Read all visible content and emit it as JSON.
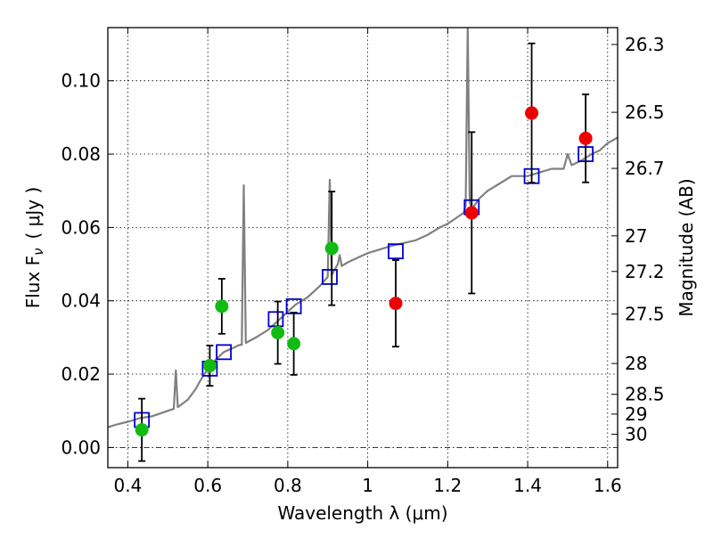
{
  "chart_data": {
    "type": "scatter",
    "xlabel": "Wavelength  λ (μm)",
    "ylabel": "Flux  F",
    "ylabel_sub": "ν",
    "ylabel_unit": "( μJy )",
    "right_ylabel": "Magnitude (AB)",
    "xlim": [
      0.35,
      1.625
    ],
    "ylim": [
      -0.0055,
      0.1145
    ],
    "x_ticks": [
      0.4,
      0.6,
      0.8,
      1.0,
      1.2,
      1.4,
      1.6
    ],
    "x_tick_labels": [
      "0.4",
      "0.6",
      "0.8",
      "1",
      "1.2",
      "1.4",
      "1.6"
    ],
    "y_ticks": [
      0.0,
      0.02,
      0.04,
      0.06,
      0.08,
      0.1
    ],
    "y_tick_labels": [
      "0.00",
      "0.02",
      "0.04",
      "0.06",
      "0.08",
      "0.10"
    ],
    "right_ticks": [
      {
        "label": "26.3",
        "flux": 0.1099
      },
      {
        "label": "26.5",
        "flux": 0.0914
      },
      {
        "label": "26.7",
        "flux": 0.0761
      },
      {
        "label": "27",
        "flux": 0.0577
      },
      {
        "label": "27.2",
        "flux": 0.048
      },
      {
        "label": "27.5",
        "flux": 0.0364
      },
      {
        "label": "28",
        "flux": 0.0229
      },
      {
        "label": "28.5",
        "flux": 0.0145
      },
      {
        "label": "29",
        "flux": 0.0091
      },
      {
        "label": "30",
        "flux": 0.0036
      }
    ],
    "grid": true,
    "zero_line": true,
    "colors": {
      "spectrum": "#808080",
      "model": "#0000cc",
      "green": "#11bb11",
      "red": "#ee0000",
      "errorbar": "#000000"
    },
    "series": [
      {
        "kind": "line",
        "points": [
          [
            0.35,
            0.0055
          ],
          [
            0.37,
            0.0062
          ],
          [
            0.4,
            0.007
          ],
          [
            0.43,
            0.008
          ],
          [
            0.46,
            0.0085
          ],
          [
            0.5,
            0.01
          ],
          [
            0.515,
            0.0105
          ],
          [
            0.52,
            0.021
          ],
          [
            0.525,
            0.011
          ],
          [
            0.55,
            0.013
          ],
          [
            0.57,
            0.016
          ],
          [
            0.58,
            0.018
          ],
          [
            0.6,
            0.0215
          ],
          [
            0.62,
            0.024
          ],
          [
            0.64,
            0.026
          ],
          [
            0.66,
            0.027
          ],
          [
            0.68,
            0.028
          ],
          [
            0.685,
            0.028
          ],
          [
            0.69,
            0.0715
          ],
          [
            0.695,
            0.0285
          ],
          [
            0.72,
            0.03
          ],
          [
            0.75,
            0.032
          ],
          [
            0.78,
            0.035
          ],
          [
            0.8,
            0.037
          ],
          [
            0.82,
            0.039
          ],
          [
            0.85,
            0.041
          ],
          [
            0.88,
            0.044
          ],
          [
            0.9,
            0.0465
          ],
          [
            0.905,
            0.073
          ],
          [
            0.91,
            0.047
          ],
          [
            0.925,
            0.05
          ],
          [
            0.93,
            0.0525
          ],
          [
            0.935,
            0.0495
          ],
          [
            0.95,
            0.0505
          ],
          [
            0.98,
            0.052
          ],
          [
            1.0,
            0.053
          ],
          [
            1.03,
            0.054
          ],
          [
            1.06,
            0.055
          ],
          [
            1.08,
            0.0555
          ],
          [
            1.1,
            0.056
          ],
          [
            1.12,
            0.0565
          ],
          [
            1.15,
            0.058
          ],
          [
            1.18,
            0.06
          ],
          [
            1.2,
            0.061
          ],
          [
            1.22,
            0.0625
          ],
          [
            1.24,
            0.064
          ],
          [
            1.245,
            0.066
          ],
          [
            1.25,
            0.115
          ],
          [
            1.255,
            0.067
          ],
          [
            1.26,
            0.065
          ],
          [
            1.28,
            0.068
          ],
          [
            1.3,
            0.07
          ],
          [
            1.33,
            0.072
          ],
          [
            1.36,
            0.074
          ],
          [
            1.4,
            0.074
          ],
          [
            1.43,
            0.075
          ],
          [
            1.46,
            0.076
          ],
          [
            1.49,
            0.076
          ],
          [
            1.5,
            0.08
          ],
          [
            1.51,
            0.077
          ],
          [
            1.53,
            0.078
          ],
          [
            1.56,
            0.08
          ],
          [
            1.58,
            0.081
          ],
          [
            1.6,
            0.083
          ],
          [
            1.625,
            0.0845
          ]
        ]
      },
      {
        "kind": "open-square",
        "points": [
          [
            0.435,
            0.0075
          ],
          [
            0.605,
            0.0215
          ],
          [
            0.64,
            0.026
          ],
          [
            0.77,
            0.035
          ],
          [
            0.815,
            0.0385
          ],
          [
            0.905,
            0.0465
          ],
          [
            1.07,
            0.0535
          ],
          [
            1.26,
            0.0655
          ],
          [
            1.41,
            0.074
          ],
          [
            1.545,
            0.08
          ]
        ]
      },
      {
        "kind": "filled-circle",
        "color_key": "green",
        "points": [
          [
            0.435,
            0.0048,
            0.0085
          ],
          [
            0.605,
            0.0223,
            0.0055
          ],
          [
            0.635,
            0.0385,
            0.0075
          ],
          [
            0.775,
            0.0313,
            0.0085
          ],
          [
            0.815,
            0.0283,
            0.0085
          ],
          [
            0.91,
            0.0543,
            0.0155
          ]
        ]
      },
      {
        "kind": "filled-circle",
        "color_key": "red",
        "points": [
          [
            1.07,
            0.0393,
            0.0118
          ],
          [
            1.26,
            0.064,
            0.022
          ],
          [
            1.41,
            0.0912,
            0.019
          ],
          [
            1.545,
            0.0843,
            0.012
          ]
        ]
      }
    ]
  }
}
